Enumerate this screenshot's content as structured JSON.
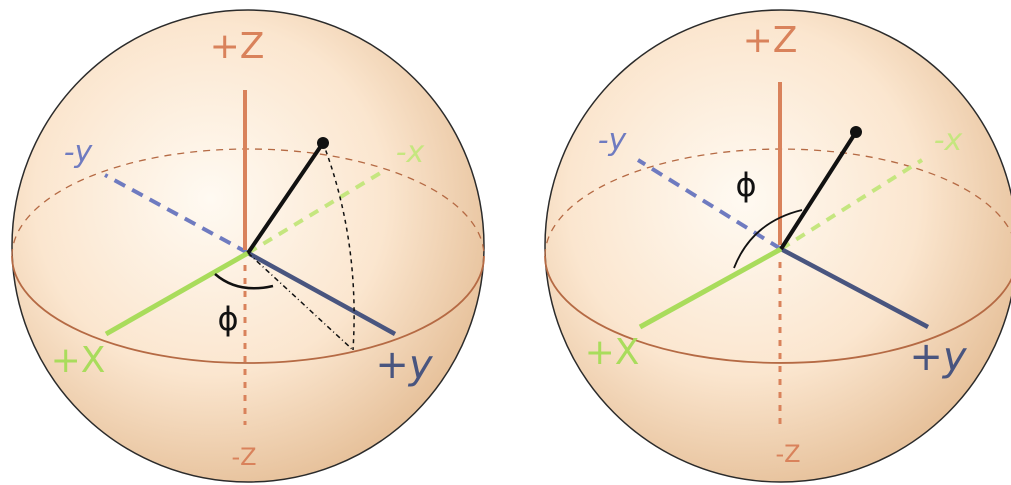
{
  "colors": {
    "sphere_light": "#fffaf2",
    "sphere_mid": "#fbe6cf",
    "sphere_dark": "#e7c29c",
    "outline": "#2b2b2b",
    "z_axis": "#d9825b",
    "y_axis": "#49557f",
    "y_axis_neg": "#6f7bc0",
    "x_axis": "#a9dc5c",
    "x_axis_neg": "#c5e67f",
    "equator": "#b56a44",
    "vector": "#111111"
  },
  "left_sphere": {
    "labels": {
      "plus_z": "+Z",
      "minus_z": "-Z",
      "plus_x": "+X",
      "minus_x": "-x",
      "plus_y": "+y",
      "minus_y": "-y",
      "angle": "ϕ"
    }
  },
  "right_sphere": {
    "labels": {
      "plus_z": "+Z",
      "minus_z": "-Z",
      "plus_x": "+X",
      "minus_x": "-x",
      "plus_y": "+y",
      "minus_y": "-y",
      "angle": "ϕ"
    }
  }
}
